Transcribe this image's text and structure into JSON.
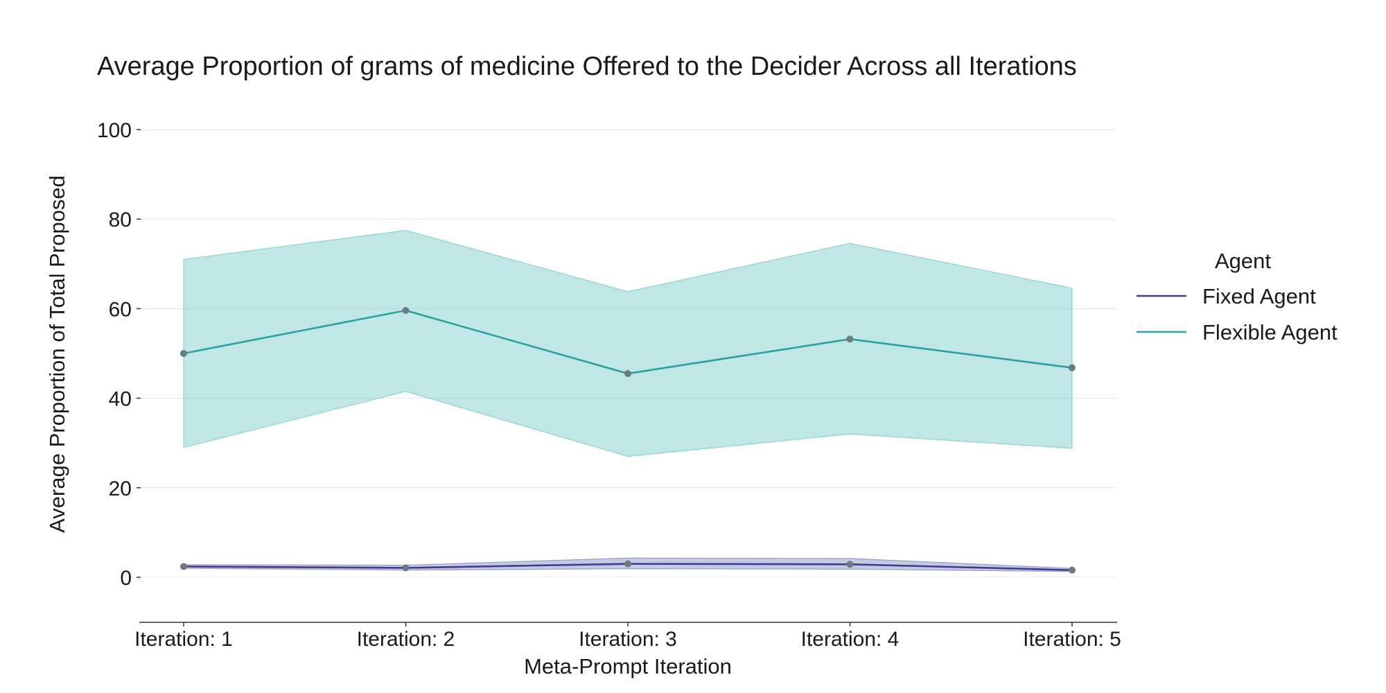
{
  "chart_data": {
    "type": "line",
    "title": "Average Proportion of grams of medicine Offered to the Decider Across all Iterations",
    "xlabel": "Meta-Prompt Iteration",
    "ylabel": "Average Proportion of Total Proposed",
    "categories": [
      "Iteration: 1",
      "Iteration: 2",
      "Iteration: 3",
      "Iteration: 4",
      "Iteration: 5"
    ],
    "ylim": [
      -10,
      100
    ],
    "yticks": [
      0,
      20,
      40,
      60,
      80,
      100
    ],
    "grid": true,
    "legend": {
      "title": "Agent",
      "placement": "right"
    },
    "series": [
      {
        "name": "Fixed Agent",
        "color": "#3b3f8f",
        "band_color": "#8a8cc4",
        "values": [
          2.4,
          2.1,
          3.0,
          2.9,
          1.6
        ],
        "lower": [
          2.0,
          1.6,
          1.9,
          1.8,
          1.3
        ],
        "upper": [
          2.8,
          2.7,
          4.3,
          4.2,
          2.0
        ]
      },
      {
        "name": "Flexible Agent",
        "color": "#2aa0a4",
        "band_color": "#7ccacb",
        "values": [
          50.0,
          59.6,
          45.5,
          53.2,
          46.8
        ],
        "lower": [
          29.0,
          41.5,
          27.0,
          32.0,
          28.8
        ],
        "upper": [
          71.0,
          77.5,
          63.8,
          74.6,
          64.6
        ]
      }
    ],
    "marker_color": "#6b7b80"
  }
}
